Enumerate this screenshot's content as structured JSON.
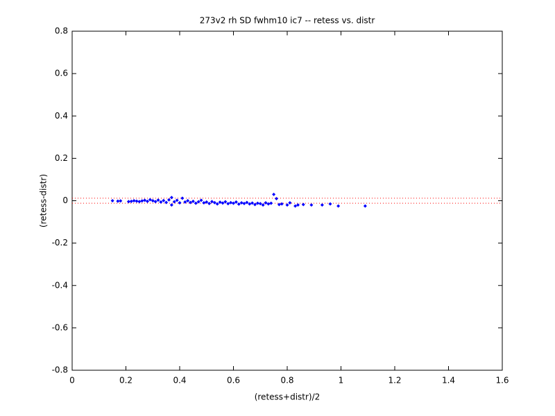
{
  "chart_data": {
    "type": "scatter",
    "title": "273v2 rh SD fwhm10 ic7 -- retess vs. distr",
    "xlabel": "(retess+distr)/2",
    "ylabel": "(retess-distr)",
    "xlim": [
      0,
      1.6
    ],
    "ylim": [
      -0.8,
      0.8
    ],
    "xticks": [
      0,
      0.2,
      0.4,
      0.6,
      0.8,
      1,
      1.2,
      1.4,
      1.6
    ],
    "yticks": [
      -0.8,
      -0.6,
      -0.4,
      -0.2,
      0,
      0.2,
      0.4,
      0.6,
      0.8
    ],
    "color": "#0000ff",
    "x": [
      0.15,
      0.17,
      0.18,
      0.21,
      0.22,
      0.23,
      0.24,
      0.25,
      0.26,
      0.27,
      0.28,
      0.29,
      0.3,
      0.31,
      0.32,
      0.33,
      0.34,
      0.35,
      0.36,
      0.37,
      0.37,
      0.38,
      0.39,
      0.4,
      0.41,
      0.42,
      0.43,
      0.44,
      0.45,
      0.46,
      0.47,
      0.48,
      0.49,
      0.5,
      0.51,
      0.52,
      0.53,
      0.54,
      0.55,
      0.56,
      0.57,
      0.58,
      0.59,
      0.6,
      0.61,
      0.62,
      0.63,
      0.64,
      0.65,
      0.66,
      0.67,
      0.68,
      0.69,
      0.7,
      0.71,
      0.72,
      0.73,
      0.74,
      0.75,
      0.76,
      0.77,
      0.78,
      0.8,
      0.81,
      0.83,
      0.84,
      0.86,
      0.89,
      0.93,
      0.96,
      0.99,
      1.09
    ],
    "y": [
      0.0,
      -0.002,
      -0.001,
      -0.004,
      -0.003,
      0.0,
      -0.002,
      -0.004,
      -0.001,
      0.002,
      -0.003,
      0.005,
      0.0,
      -0.004,
      0.003,
      -0.006,
      0.001,
      -0.008,
      0.004,
      -0.02,
      0.015,
      -0.005,
      0.002,
      -0.01,
      0.012,
      -0.006,
      0.0,
      -0.008,
      -0.003,
      -0.012,
      -0.005,
      0.002,
      -0.01,
      -0.006,
      -0.013,
      -0.004,
      -0.009,
      -0.015,
      -0.007,
      -0.011,
      -0.005,
      -0.014,
      -0.009,
      -0.012,
      -0.006,
      -0.016,
      -0.01,
      -0.013,
      -0.008,
      -0.015,
      -0.011,
      -0.018,
      -0.012,
      -0.014,
      -0.02,
      -0.01,
      -0.015,
      -0.012,
      0.03,
      0.01,
      -0.018,
      -0.015,
      -0.02,
      -0.01,
      -0.025,
      -0.02,
      -0.018,
      -0.02,
      -0.02,
      -0.015,
      -0.025,
      -0.025
    ],
    "reference_lines": {
      "values": [
        0.012,
        -0.012
      ],
      "color": "#ff0000"
    }
  }
}
